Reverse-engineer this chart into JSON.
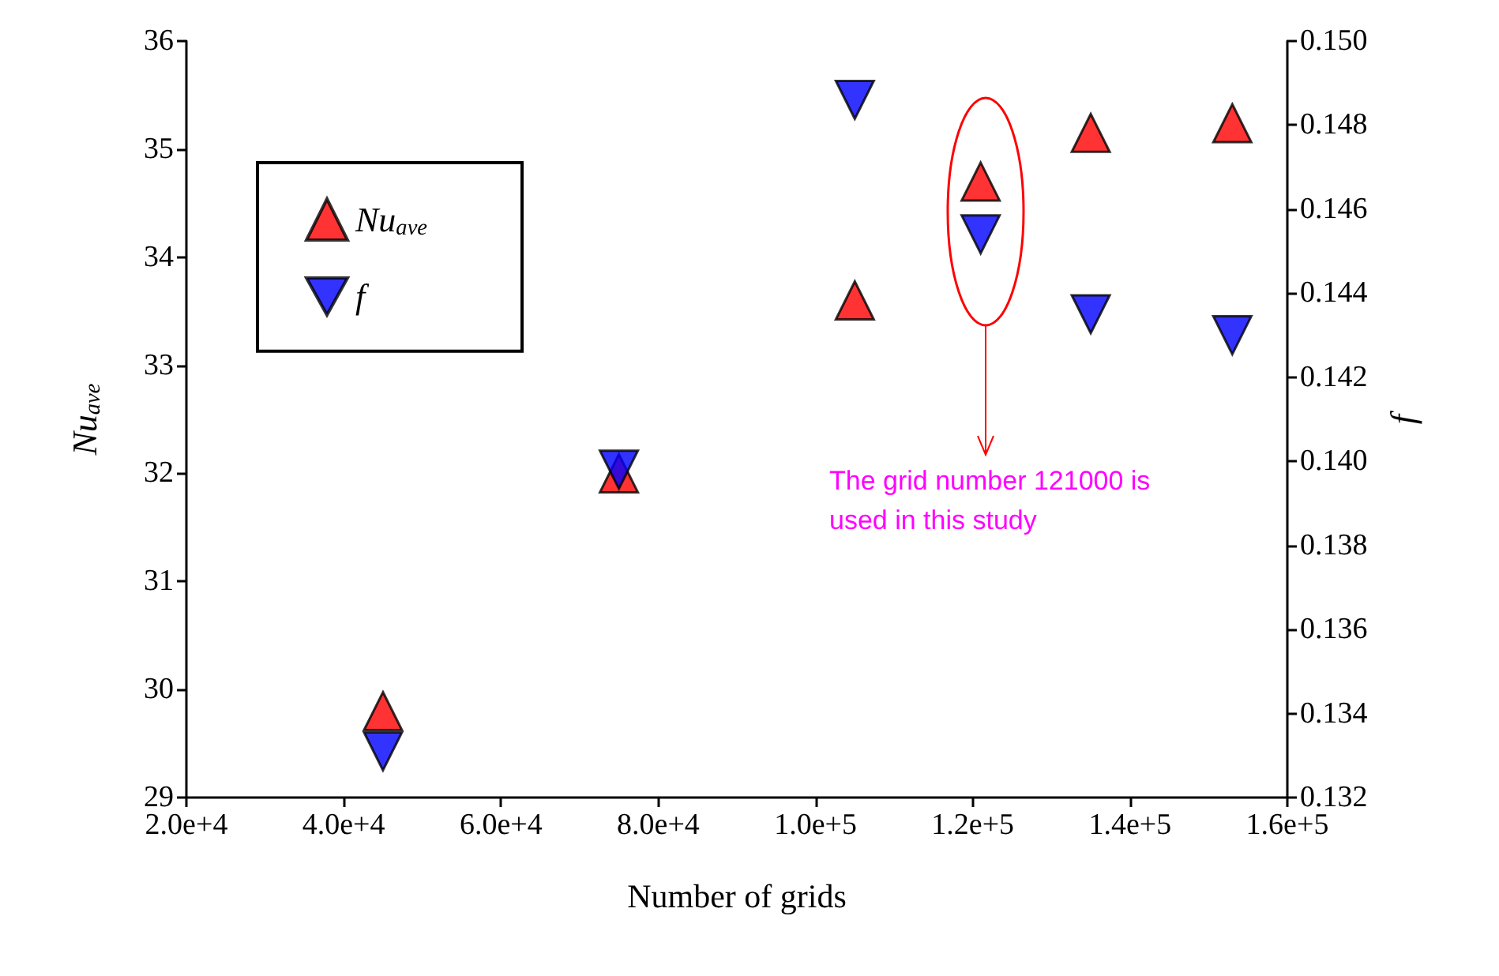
{
  "chart_data": {
    "type": "scatter",
    "xlabel": "Number of grids",
    "ylabel": "Nu$_{ave}$",
    "y2label": "f",
    "x": [
      45000,
      75000,
      105000,
      121000,
      135000,
      153000
    ],
    "series": [
      {
        "name": "Nu$_{ave}$",
        "color": "#ff0000",
        "marker": "triangle",
        "values": [
          29.8,
          32.0,
          33.6,
          34.7,
          35.15,
          35.24
        ]
      },
      {
        "name": "f",
        "color": "#0000ff",
        "marker": "triangle_down",
        "axis": "y2",
        "values": [
          0.1331,
          0.1398,
          0.1486,
          0.1454,
          0.1435,
          0.143
        ]
      }
    ],
    "xlim": [
      20000,
      160000
    ],
    "xticks": [
      {
        "value": 20000,
        "label": "2.0e+4"
      },
      {
        "value": 40000,
        "label": "4.0e+4"
      },
      {
        "value": 60000,
        "label": "6.0e+4"
      },
      {
        "value": 80000,
        "label": "8.0e+4"
      },
      {
        "value": 100000,
        "label": "1.0e+5"
      },
      {
        "value": 120000,
        "label": "1.2e+5"
      },
      {
        "value": 140000,
        "label": "1.4e+5"
      },
      {
        "value": 160000,
        "label": "1.6e+5"
      }
    ],
    "ylim": [
      29,
      36
    ],
    "yticks": [
      29,
      30,
      31,
      32,
      33,
      34,
      35,
      36
    ],
    "y2lim": [
      0.132,
      0.15
    ],
    "y2ticks": [
      0.132,
      0.134,
      0.136,
      0.138,
      {
        "value": 0.14,
        "label": "0.140"
      },
      0.142,
      0.144,
      0.146,
      0.148,
      {
        "value": 0.15,
        "label": "0.150"
      }
    ],
    "annotations": [
      "The grid number 121000 is used in this study"
    ],
    "grid": false,
    "legend": "top left"
  }
}
